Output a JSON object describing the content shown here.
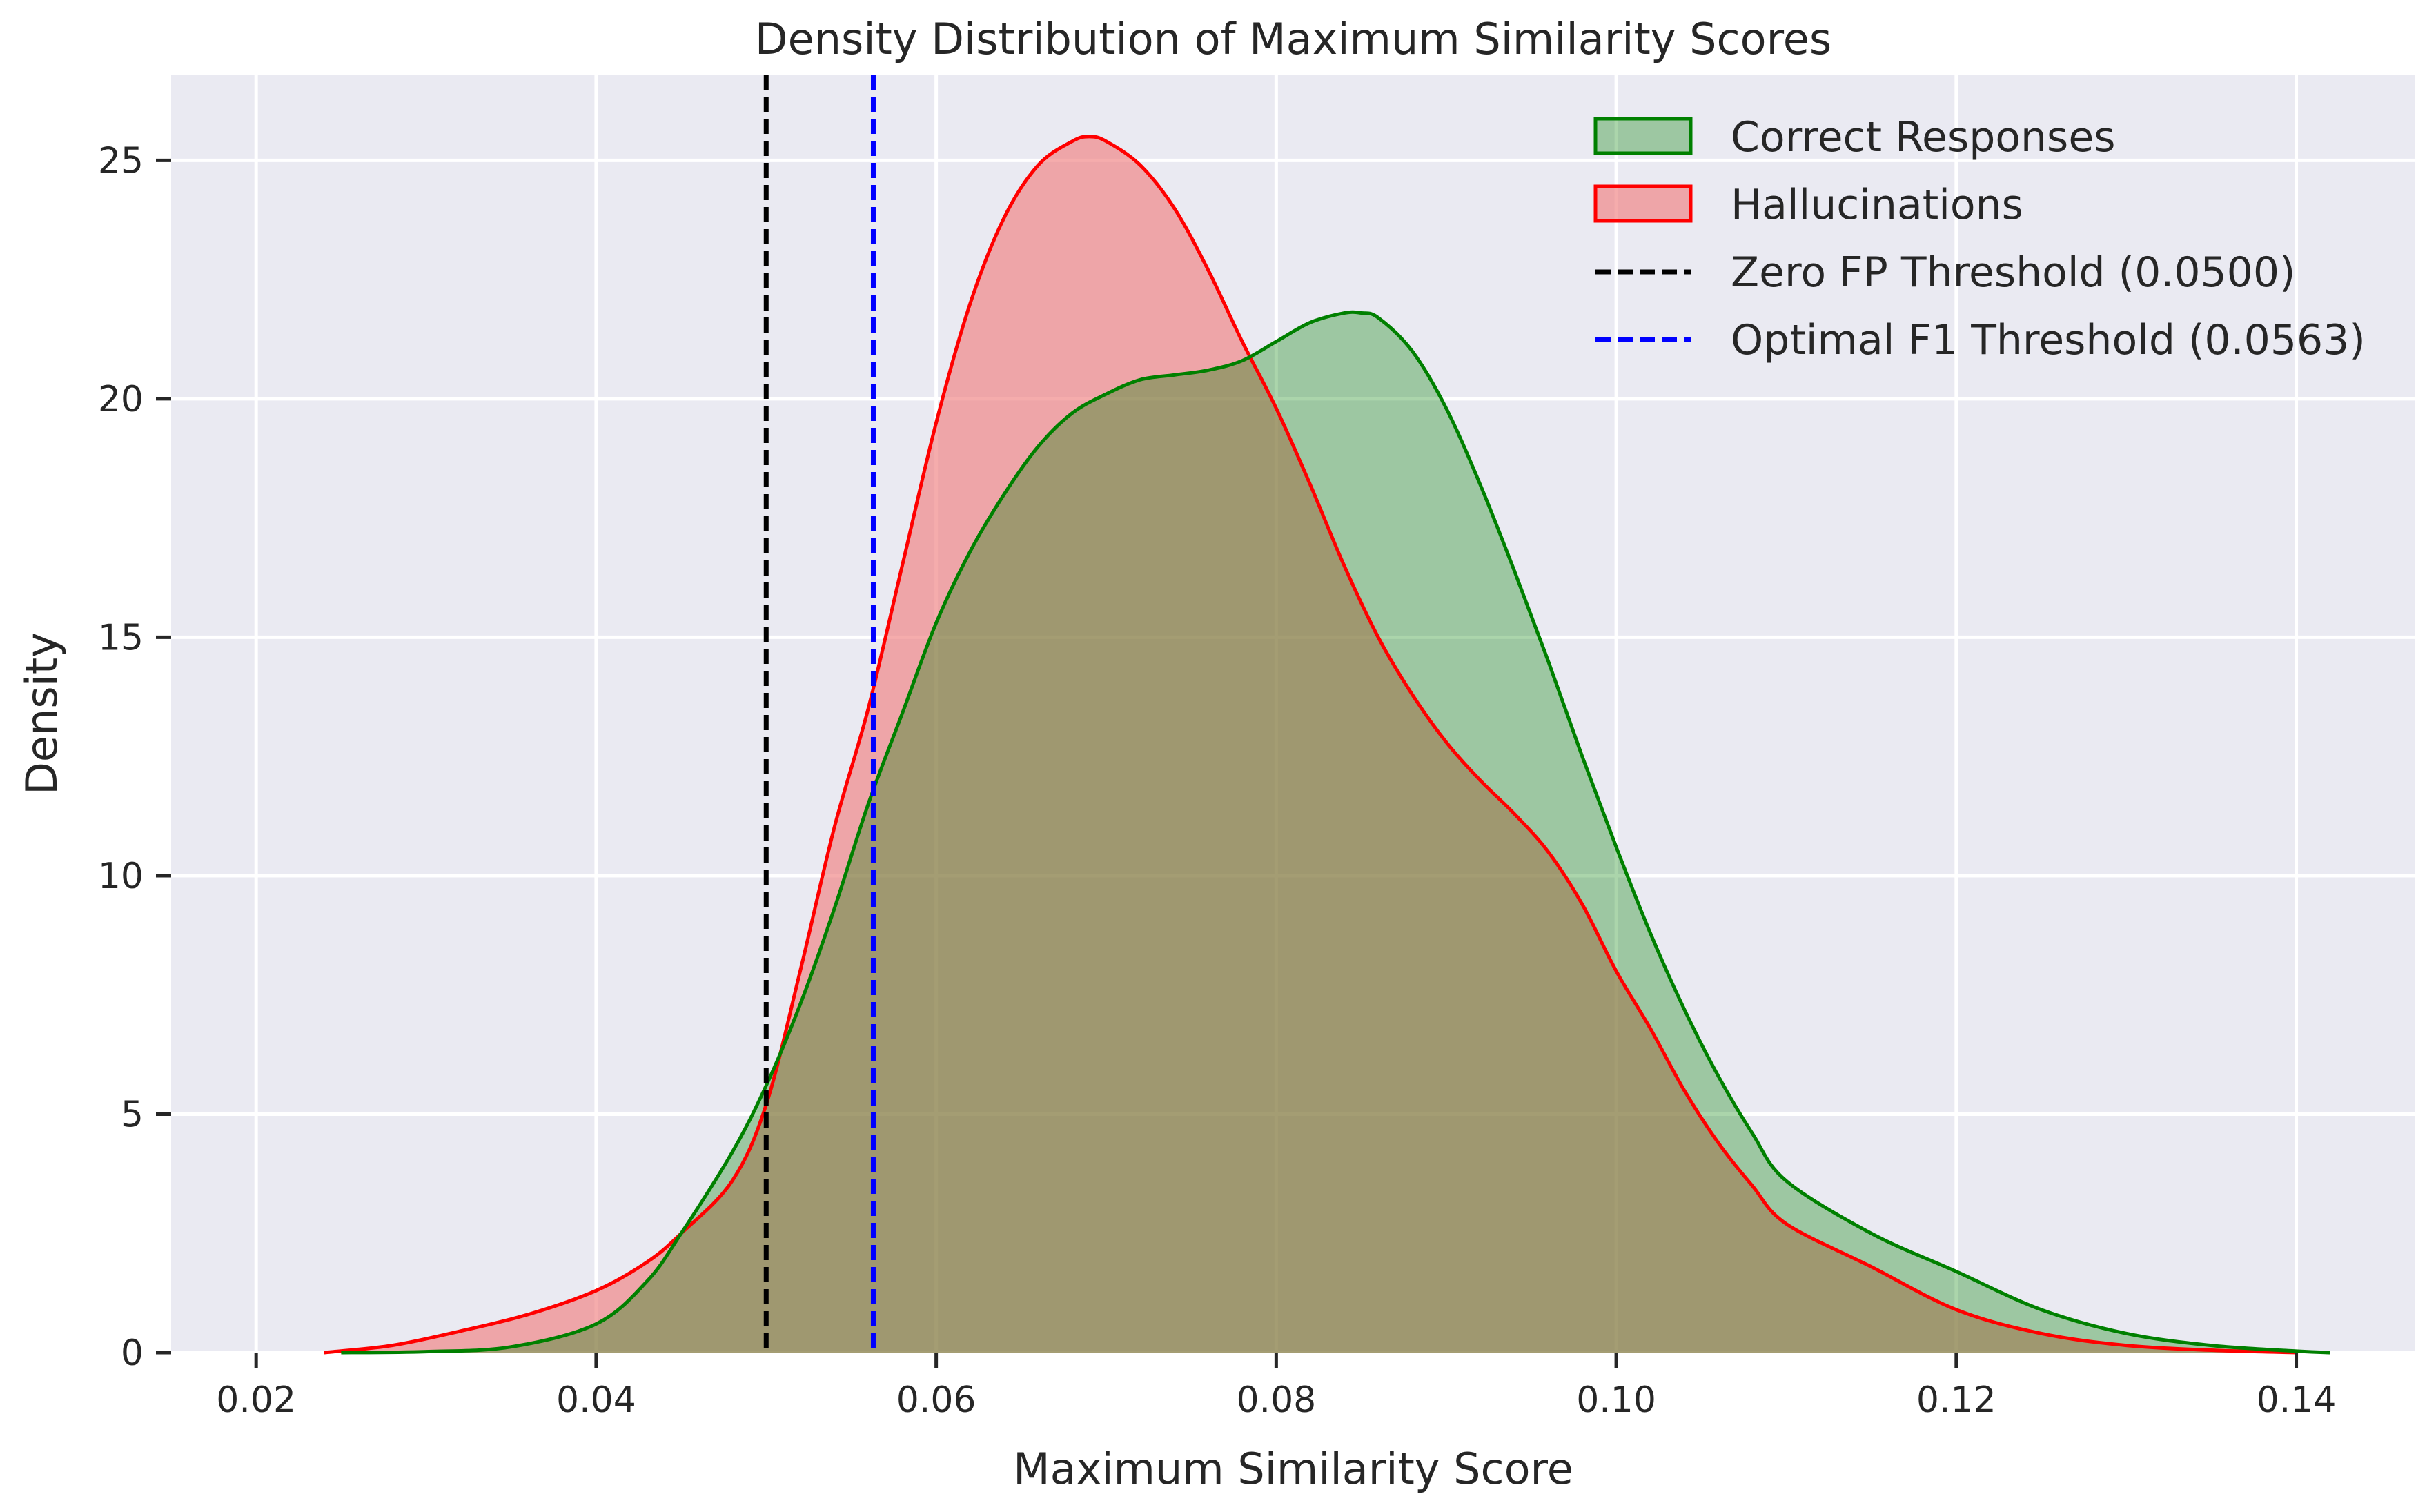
{
  "chart_data": {
    "type": "area",
    "title": "Density Distribution of Maximum Similarity Scores",
    "xlabel": "Maximum Similarity Score",
    "ylabel": "Density",
    "xlim": [
      0.015,
      0.147
    ],
    "ylim": [
      0,
      26.8
    ],
    "xticks": [
      0.02,
      0.04,
      0.06,
      0.08,
      0.1,
      0.12,
      0.14
    ],
    "xtick_labels": [
      "0.02",
      "0.04",
      "0.06",
      "0.08",
      "0.10",
      "0.12",
      "0.14"
    ],
    "yticks": [
      0,
      5,
      10,
      15,
      20,
      25
    ],
    "ytick_labels": [
      "0",
      "5",
      "10",
      "15",
      "20",
      "25"
    ],
    "grid": true,
    "legend_position": "top-right",
    "series": [
      {
        "name": "Correct Responses",
        "color": "#008000",
        "fill": "#008000",
        "x": [
          0.025,
          0.03,
          0.035,
          0.04,
          0.043,
          0.045,
          0.048,
          0.05,
          0.052,
          0.054,
          0.056,
          0.058,
          0.06,
          0.062,
          0.064,
          0.066,
          0.068,
          0.07,
          0.072,
          0.074,
          0.076,
          0.078,
          0.08,
          0.082,
          0.084,
          0.085,
          0.086,
          0.088,
          0.09,
          0.092,
          0.094,
          0.096,
          0.098,
          0.1,
          0.102,
          0.104,
          0.106,
          0.108,
          0.11,
          0.115,
          0.12,
          0.125,
          0.13,
          0.135,
          0.14,
          0.142
        ],
        "y": [
          0.0,
          0.02,
          0.12,
          0.6,
          1.5,
          2.5,
          4.2,
          5.6,
          7.3,
          9.3,
          11.5,
          13.4,
          15.3,
          16.8,
          18.0,
          19.0,
          19.7,
          20.1,
          20.4,
          20.5,
          20.6,
          20.8,
          21.2,
          21.6,
          21.8,
          21.8,
          21.7,
          21.0,
          19.8,
          18.2,
          16.4,
          14.5,
          12.5,
          10.6,
          8.8,
          7.2,
          5.8,
          4.6,
          3.6,
          2.5,
          1.7,
          0.9,
          0.4,
          0.15,
          0.03,
          0.0
        ]
      },
      {
        "name": "Hallucinations",
        "color": "#ff0000",
        "fill": "#f08080",
        "x": [
          0.024,
          0.028,
          0.032,
          0.036,
          0.04,
          0.043,
          0.045,
          0.048,
          0.05,
          0.052,
          0.054,
          0.056,
          0.058,
          0.06,
          0.062,
          0.064,
          0.066,
          0.068,
          0.069,
          0.07,
          0.072,
          0.074,
          0.076,
          0.078,
          0.08,
          0.082,
          0.084,
          0.086,
          0.088,
          0.09,
          0.092,
          0.094,
          0.096,
          0.098,
          0.1,
          0.102,
          0.104,
          0.106,
          0.108,
          0.11,
          0.115,
          0.12,
          0.125,
          0.13,
          0.135,
          0.14
        ],
        "y": [
          0.0,
          0.15,
          0.45,
          0.8,
          1.3,
          1.9,
          2.5,
          3.6,
          5.2,
          8.0,
          11.0,
          13.5,
          16.5,
          19.5,
          22.0,
          23.8,
          24.9,
          25.4,
          25.5,
          25.4,
          24.9,
          24.0,
          22.7,
          21.2,
          19.8,
          18.2,
          16.5,
          15.0,
          13.8,
          12.8,
          12.0,
          11.3,
          10.5,
          9.4,
          8.0,
          6.8,
          5.5,
          4.4,
          3.5,
          2.7,
          1.8,
          0.9,
          0.4,
          0.15,
          0.05,
          0.0
        ]
      }
    ],
    "thresholds": [
      {
        "name": "Zero FP Threshold (0.0500)",
        "x": 0.05,
        "color": "#000000",
        "style": "dashed"
      },
      {
        "name": "Optimal F1 Threshold (0.0563)",
        "x": 0.0563,
        "color": "#0000ff",
        "style": "dashed"
      }
    ]
  }
}
